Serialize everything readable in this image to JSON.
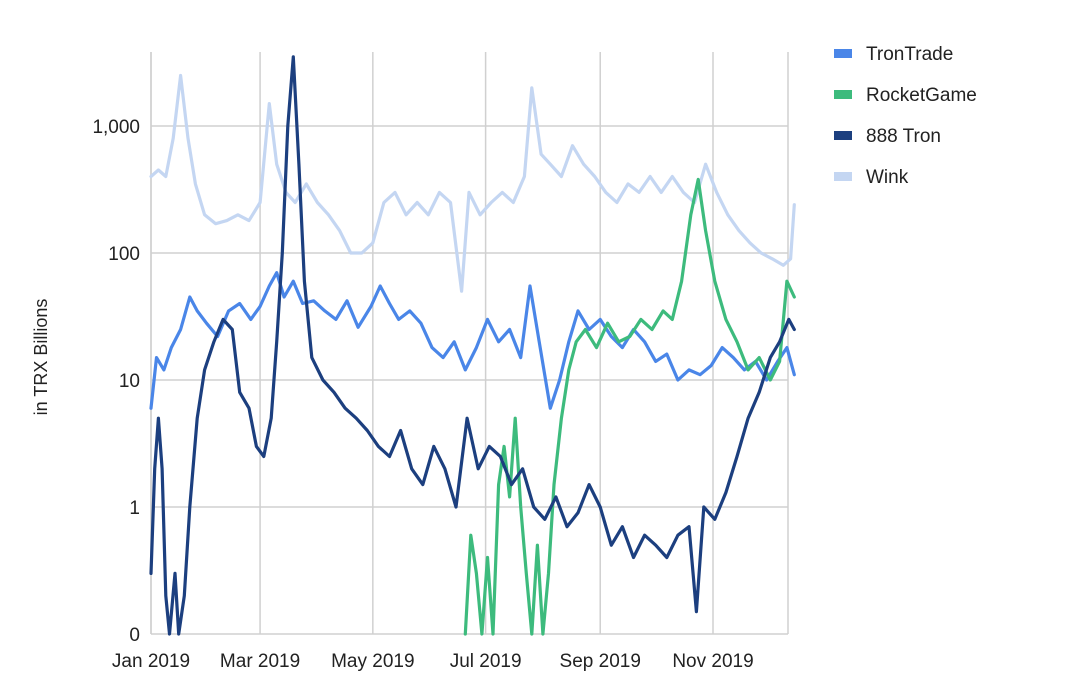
{
  "chart_data": {
    "type": "line",
    "title": "",
    "xlabel": "",
    "ylabel": "in TRX Billions",
    "y_scale": "log with zero floor",
    "y_ticks": [
      "0",
      "1",
      "10",
      "100",
      "1,000"
    ],
    "y_tick_values": [
      0,
      1,
      10,
      100,
      1000
    ],
    "x_ticks": [
      "Jan 2019",
      "Mar 2019",
      "May 2019",
      "Jul 2019",
      "Sep 2019",
      "Nov 2019"
    ],
    "x_tick_dates": [
      "2019-01-01",
      "2019-03-01",
      "2019-05-01",
      "2019-07-01",
      "2019-09-01",
      "2019-11-01"
    ],
    "x_range": [
      "2019-01-01",
      "2019-12-15"
    ],
    "grid": true,
    "legend_position": "top-right",
    "series": [
      {
        "name": "TronTrade",
        "color": "#4a86e8",
        "points": [
          [
            "2019-01-01",
            6
          ],
          [
            "2019-01-04",
            15
          ],
          [
            "2019-01-08",
            12
          ],
          [
            "2019-01-12",
            18
          ],
          [
            "2019-01-17",
            25
          ],
          [
            "2019-01-22",
            45
          ],
          [
            "2019-01-26",
            35
          ],
          [
            "2019-01-31",
            28
          ],
          [
            "2019-02-06",
            22
          ],
          [
            "2019-02-12",
            35
          ],
          [
            "2019-02-18",
            40
          ],
          [
            "2019-02-24",
            30
          ],
          [
            "2019-03-01",
            38
          ],
          [
            "2019-03-06",
            55
          ],
          [
            "2019-03-10",
            70
          ],
          [
            "2019-03-14",
            45
          ],
          [
            "2019-03-19",
            60
          ],
          [
            "2019-03-24",
            40
          ],
          [
            "2019-03-30",
            42
          ],
          [
            "2019-04-05",
            35
          ],
          [
            "2019-04-11",
            30
          ],
          [
            "2019-04-17",
            42
          ],
          [
            "2019-04-23",
            26
          ],
          [
            "2019-04-30",
            38
          ],
          [
            "2019-05-05",
            55
          ],
          [
            "2019-05-10",
            40
          ],
          [
            "2019-05-15",
            30
          ],
          [
            "2019-05-21",
            35
          ],
          [
            "2019-05-27",
            28
          ],
          [
            "2019-06-02",
            18
          ],
          [
            "2019-06-08",
            15
          ],
          [
            "2019-06-14",
            20
          ],
          [
            "2019-06-20",
            12
          ],
          [
            "2019-06-26",
            18
          ],
          [
            "2019-07-02",
            30
          ],
          [
            "2019-07-08",
            20
          ],
          [
            "2019-07-14",
            25
          ],
          [
            "2019-07-20",
            15
          ],
          [
            "2019-07-25",
            55
          ],
          [
            "2019-07-30",
            20
          ],
          [
            "2019-08-05",
            6
          ],
          [
            "2019-08-10",
            10
          ],
          [
            "2019-08-15",
            20
          ],
          [
            "2019-08-20",
            35
          ],
          [
            "2019-08-26",
            25
          ],
          [
            "2019-09-01",
            30
          ],
          [
            "2019-09-07",
            22
          ],
          [
            "2019-09-13",
            18
          ],
          [
            "2019-09-19",
            25
          ],
          [
            "2019-09-25",
            20
          ],
          [
            "2019-10-01",
            14
          ],
          [
            "2019-10-07",
            16
          ],
          [
            "2019-10-13",
            10
          ],
          [
            "2019-10-19",
            12
          ],
          [
            "2019-10-25",
            11
          ],
          [
            "2019-10-31",
            13
          ],
          [
            "2019-11-06",
            18
          ],
          [
            "2019-11-12",
            15
          ],
          [
            "2019-11-18",
            12
          ],
          [
            "2019-11-24",
            14
          ],
          [
            "2019-11-30",
            10
          ],
          [
            "2019-12-06",
            14
          ],
          [
            "2019-12-11",
            18
          ],
          [
            "2019-12-15",
            11
          ]
        ]
      },
      {
        "name": "RocketGame",
        "color": "#3dbb7d",
        "points": [
          [
            "2019-06-20",
            0
          ],
          [
            "2019-06-23",
            0.6
          ],
          [
            "2019-06-26",
            0.3
          ],
          [
            "2019-06-29",
            0
          ],
          [
            "2019-07-02",
            0.4
          ],
          [
            "2019-07-05",
            0
          ],
          [
            "2019-07-08",
            1.5
          ],
          [
            "2019-07-11",
            3
          ],
          [
            "2019-07-14",
            1.2
          ],
          [
            "2019-07-17",
            5
          ],
          [
            "2019-07-20",
            1
          ],
          [
            "2019-07-23",
            0.3
          ],
          [
            "2019-07-26",
            0
          ],
          [
            "2019-07-29",
            0.5
          ],
          [
            "2019-08-01",
            0
          ],
          [
            "2019-08-04",
            0.3
          ],
          [
            "2019-08-07",
            1.5
          ],
          [
            "2019-08-11",
            5
          ],
          [
            "2019-08-15",
            12
          ],
          [
            "2019-08-19",
            20
          ],
          [
            "2019-08-24",
            25
          ],
          [
            "2019-08-30",
            18
          ],
          [
            "2019-09-05",
            28
          ],
          [
            "2019-09-11",
            20
          ],
          [
            "2019-09-17",
            22
          ],
          [
            "2019-09-23",
            30
          ],
          [
            "2019-09-29",
            25
          ],
          [
            "2019-10-05",
            35
          ],
          [
            "2019-10-10",
            30
          ],
          [
            "2019-10-15",
            60
          ],
          [
            "2019-10-20",
            200
          ],
          [
            "2019-10-24",
            380
          ],
          [
            "2019-10-28",
            150
          ],
          [
            "2019-11-02",
            60
          ],
          [
            "2019-11-08",
            30
          ],
          [
            "2019-11-14",
            20
          ],
          [
            "2019-11-20",
            12
          ],
          [
            "2019-11-26",
            15
          ],
          [
            "2019-12-02",
            10
          ],
          [
            "2019-12-07",
            14
          ],
          [
            "2019-12-11",
            60
          ],
          [
            "2019-12-15",
            45
          ]
        ]
      },
      {
        "name": "888 Tron",
        "color": "#1c3f7f",
        "points": [
          [
            "2019-01-01",
            0.3
          ],
          [
            "2019-01-03",
            2
          ],
          [
            "2019-01-05",
            5
          ],
          [
            "2019-01-07",
            2
          ],
          [
            "2019-01-09",
            0.2
          ],
          [
            "2019-01-11",
            0
          ],
          [
            "2019-01-14",
            0.3
          ],
          [
            "2019-01-16",
            0
          ],
          [
            "2019-01-19",
            0.2
          ],
          [
            "2019-01-22",
            1
          ],
          [
            "2019-01-26",
            5
          ],
          [
            "2019-01-30",
            12
          ],
          [
            "2019-02-04",
            20
          ],
          [
            "2019-02-09",
            30
          ],
          [
            "2019-02-14",
            25
          ],
          [
            "2019-02-18",
            8
          ],
          [
            "2019-02-23",
            6
          ],
          [
            "2019-02-27",
            3
          ],
          [
            "2019-03-03",
            2.5
          ],
          [
            "2019-03-07",
            5
          ],
          [
            "2019-03-10",
            20
          ],
          [
            "2019-03-13",
            100
          ],
          [
            "2019-03-16",
            1000
          ],
          [
            "2019-03-19",
            3500
          ],
          [
            "2019-03-22",
            500
          ],
          [
            "2019-03-25",
            60
          ],
          [
            "2019-03-29",
            15
          ],
          [
            "2019-04-04",
            10
          ],
          [
            "2019-04-10",
            8
          ],
          [
            "2019-04-16",
            6
          ],
          [
            "2019-04-22",
            5
          ],
          [
            "2019-04-28",
            4
          ],
          [
            "2019-05-04",
            3
          ],
          [
            "2019-05-10",
            2.5
          ],
          [
            "2019-05-16",
            4
          ],
          [
            "2019-05-22",
            2
          ],
          [
            "2019-05-28",
            1.5
          ],
          [
            "2019-06-03",
            3
          ],
          [
            "2019-06-09",
            2
          ],
          [
            "2019-06-15",
            1
          ],
          [
            "2019-06-21",
            5
          ],
          [
            "2019-06-27",
            2
          ],
          [
            "2019-07-03",
            3
          ],
          [
            "2019-07-09",
            2.5
          ],
          [
            "2019-07-15",
            1.5
          ],
          [
            "2019-07-21",
            2
          ],
          [
            "2019-07-27",
            1
          ],
          [
            "2019-08-02",
            0.8
          ],
          [
            "2019-08-08",
            1.2
          ],
          [
            "2019-08-14",
            0.7
          ],
          [
            "2019-08-20",
            0.9
          ],
          [
            "2019-08-26",
            1.5
          ],
          [
            "2019-09-01",
            1
          ],
          [
            "2019-09-07",
            0.5
          ],
          [
            "2019-09-13",
            0.7
          ],
          [
            "2019-09-19",
            0.4
          ],
          [
            "2019-09-25",
            0.6
          ],
          [
            "2019-10-01",
            0.5
          ],
          [
            "2019-10-07",
            0.4
          ],
          [
            "2019-10-13",
            0.6
          ],
          [
            "2019-10-19",
            0.7
          ],
          [
            "2019-10-23",
            0.15
          ],
          [
            "2019-10-27",
            1
          ],
          [
            "2019-11-02",
            0.8
          ],
          [
            "2019-11-08",
            1.3
          ],
          [
            "2019-11-14",
            2.5
          ],
          [
            "2019-11-20",
            5
          ],
          [
            "2019-11-26",
            8
          ],
          [
            "2019-12-02",
            15
          ],
          [
            "2019-12-07",
            20
          ],
          [
            "2019-12-12",
            30
          ],
          [
            "2019-12-15",
            25
          ]
        ]
      },
      {
        "name": "Wink",
        "color": "#c4d6f2",
        "points": [
          [
            "2019-01-01",
            400
          ],
          [
            "2019-01-05",
            450
          ],
          [
            "2019-01-09",
            400
          ],
          [
            "2019-01-13",
            800
          ],
          [
            "2019-01-17",
            2500
          ],
          [
            "2019-01-21",
            800
          ],
          [
            "2019-01-25",
            350
          ],
          [
            "2019-01-30",
            200
          ],
          [
            "2019-02-05",
            170
          ],
          [
            "2019-02-11",
            180
          ],
          [
            "2019-02-17",
            200
          ],
          [
            "2019-02-23",
            180
          ],
          [
            "2019-03-01",
            250
          ],
          [
            "2019-03-06",
            1500
          ],
          [
            "2019-03-10",
            500
          ],
          [
            "2019-03-15",
            300
          ],
          [
            "2019-03-20",
            250
          ],
          [
            "2019-03-26",
            350
          ],
          [
            "2019-04-01",
            250
          ],
          [
            "2019-04-07",
            200
          ],
          [
            "2019-04-13",
            150
          ],
          [
            "2019-04-19",
            100
          ],
          [
            "2019-04-25",
            100
          ],
          [
            "2019-05-01",
            120
          ],
          [
            "2019-05-07",
            250
          ],
          [
            "2019-05-13",
            300
          ],
          [
            "2019-05-19",
            200
          ],
          [
            "2019-05-25",
            250
          ],
          [
            "2019-05-31",
            200
          ],
          [
            "2019-06-06",
            300
          ],
          [
            "2019-06-12",
            250
          ],
          [
            "2019-06-18",
            50
          ],
          [
            "2019-06-22",
            300
          ],
          [
            "2019-06-28",
            200
          ],
          [
            "2019-07-04",
            250
          ],
          [
            "2019-07-10",
            300
          ],
          [
            "2019-07-16",
            250
          ],
          [
            "2019-07-22",
            400
          ],
          [
            "2019-07-26",
            2000
          ],
          [
            "2019-07-31",
            600
          ],
          [
            "2019-08-05",
            500
          ],
          [
            "2019-08-11",
            400
          ],
          [
            "2019-08-17",
            700
          ],
          [
            "2019-08-23",
            500
          ],
          [
            "2019-08-29",
            400
          ],
          [
            "2019-09-04",
            300
          ],
          [
            "2019-09-10",
            250
          ],
          [
            "2019-09-16",
            350
          ],
          [
            "2019-09-22",
            300
          ],
          [
            "2019-09-28",
            400
          ],
          [
            "2019-10-04",
            300
          ],
          [
            "2019-10-10",
            400
          ],
          [
            "2019-10-16",
            300
          ],
          [
            "2019-10-22",
            250
          ],
          [
            "2019-10-28",
            500
          ],
          [
            "2019-11-03",
            300
          ],
          [
            "2019-11-09",
            200
          ],
          [
            "2019-11-15",
            150
          ],
          [
            "2019-11-21",
            120
          ],
          [
            "2019-11-27",
            100
          ],
          [
            "2019-12-03",
            90
          ],
          [
            "2019-12-09",
            80
          ],
          [
            "2019-12-13",
            90
          ],
          [
            "2019-12-15",
            240
          ]
        ]
      }
    ]
  }
}
